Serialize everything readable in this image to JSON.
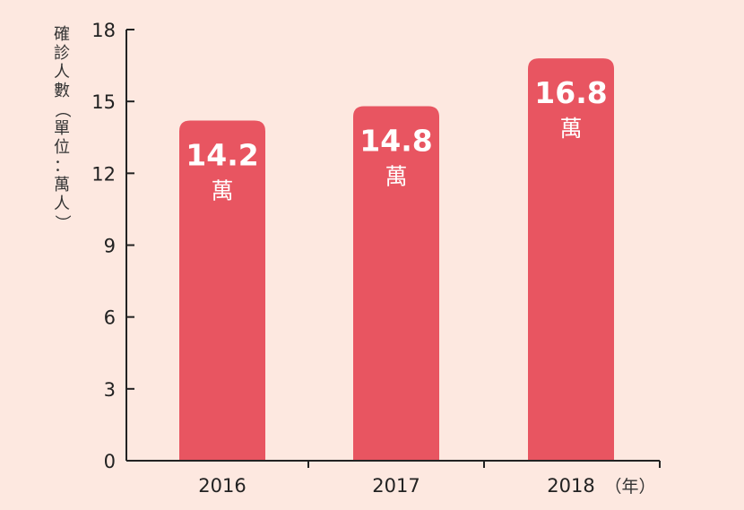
{
  "chart_data": {
    "type": "bar",
    "categories": [
      "2016",
      "2017",
      "2018"
    ],
    "values": [
      14.2,
      14.8,
      16.8
    ],
    "value_labels": [
      "14.2",
      "14.8",
      "16.8"
    ],
    "unit_label": "萬",
    "ylabel": "確診人數（單位：萬人）",
    "xunit": "（年）",
    "ylim": [
      0,
      18
    ],
    "yticks": [
      0,
      3,
      6,
      9,
      12,
      15,
      18
    ],
    "grid": false,
    "colors": {
      "bar": "#e85561",
      "axis": "#222222",
      "background": "#fde8e0",
      "bar_text": "#ffffff"
    }
  }
}
